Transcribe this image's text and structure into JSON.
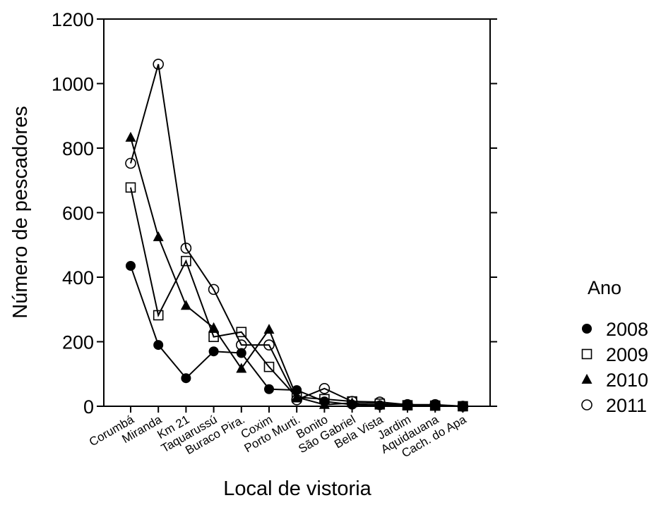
{
  "chart_data": {
    "type": "line",
    "xlabel": "Local de vistoria",
    "ylabel": "Número de pescadores",
    "ylim": [
      0,
      1200
    ],
    "yticks": [
      0,
      200,
      400,
      600,
      800,
      1000,
      1200
    ],
    "categories": [
      "Corumbá",
      "Miranda",
      "Km 21",
      "Taquarussú",
      "Buraco Pira.",
      "Coxim",
      "Porto Murti.",
      "Bonito",
      "São Gabriel",
      "Bela Vista",
      "Jardim",
      "Aquidauana",
      "Cach. do Apa"
    ],
    "legend_title": "Ano",
    "legend_position": "right",
    "series": [
      {
        "name": "2008",
        "marker": "filled-circle",
        "values": [
          435,
          190,
          87,
          170,
          165,
          53,
          50,
          15,
          5,
          3,
          5,
          3,
          0
        ]
      },
      {
        "name": "2009",
        "marker": "open-square",
        "values": [
          678,
          282,
          450,
          215,
          230,
          122,
          28,
          22,
          15,
          8,
          3,
          2,
          0
        ]
      },
      {
        "name": "2010",
        "marker": "filled-triangle",
        "values": [
          833,
          525,
          312,
          243,
          117,
          238,
          28,
          5,
          10,
          3,
          2,
          2,
          0
        ]
      },
      {
        "name": "2011",
        "marker": "open-circle",
        "values": [
          753,
          1060,
          490,
          362,
          190,
          190,
          20,
          55,
          15,
          13,
          5,
          5,
          0
        ]
      }
    ]
  }
}
